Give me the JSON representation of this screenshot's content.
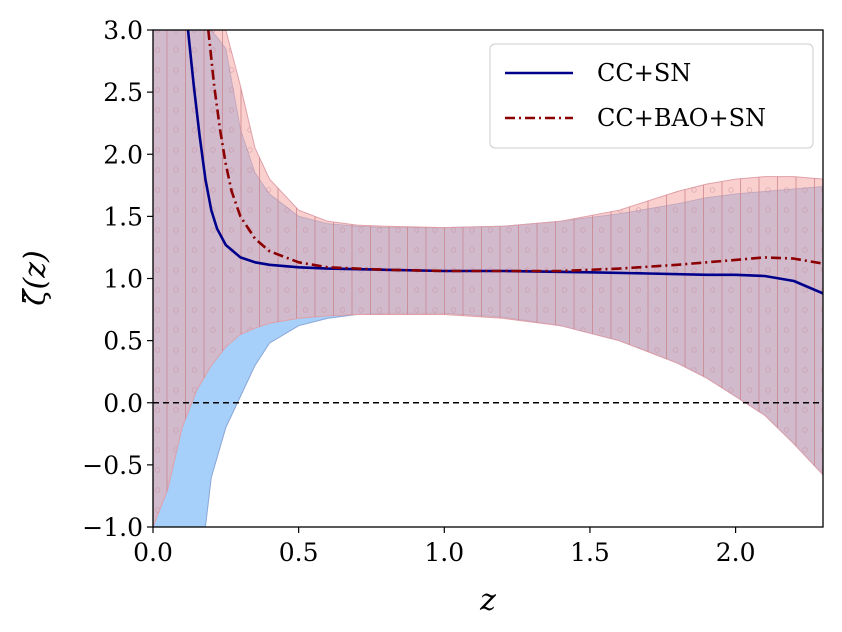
{
  "chart_data": {
    "type": "line",
    "xlabel": "z",
    "ylabel": "ζ̃(z)",
    "xlim": [
      0.0,
      2.3
    ],
    "ylim": [
      -1.0,
      3.0
    ],
    "x_ticks": [
      0.0,
      0.5,
      1.0,
      1.5,
      2.0
    ],
    "x_tick_labels": [
      "0.0",
      "0.5",
      "1.0",
      "1.5",
      "2.0"
    ],
    "y_ticks": [
      -1.0,
      -0.5,
      0.0,
      0.5,
      1.0,
      1.5,
      2.0,
      2.5,
      3.0
    ],
    "y_tick_labels": [
      "−1.0",
      "−0.5",
      "0.0",
      "0.5",
      "1.0",
      "1.5",
      "2.0",
      "2.5",
      "3.0"
    ],
    "reference_line": {
      "y": 0.0,
      "style": "dashed",
      "color": "#000000"
    },
    "legend_position": "top-right",
    "series": [
      {
        "name": "CC+SN",
        "color": "#00008b",
        "style": "solid",
        "band_color": "#a6cffa",
        "x": [
          0.12,
          0.14,
          0.16,
          0.18,
          0.2,
          0.22,
          0.25,
          0.3,
          0.35,
          0.4,
          0.5,
          0.6,
          0.8,
          1.0,
          1.2,
          1.5,
          1.7,
          1.9,
          2.0,
          2.1,
          2.2,
          2.3
        ],
        "y": [
          3.0,
          2.55,
          2.15,
          1.8,
          1.55,
          1.4,
          1.27,
          1.17,
          1.13,
          1.11,
          1.09,
          1.08,
          1.07,
          1.06,
          1.06,
          1.05,
          1.04,
          1.03,
          1.03,
          1.02,
          0.98,
          0.88
        ],
        "band_x": [
          0.0,
          0.05,
          0.1,
          0.12,
          0.15,
          0.18,
          0.2,
          0.25,
          0.3,
          0.35,
          0.4,
          0.5,
          0.6,
          0.7,
          0.8,
          1.0,
          1.2,
          1.4,
          1.6,
          1.8,
          1.9,
          2.0,
          2.1,
          2.2,
          2.3
        ],
        "band_upper": [
          3.0,
          3.0,
          3.0,
          3.0,
          3.0,
          3.0,
          3.0,
          2.85,
          2.2,
          1.85,
          1.68,
          1.5,
          1.44,
          1.42,
          1.41,
          1.41,
          1.42,
          1.46,
          1.52,
          1.6,
          1.65,
          1.68,
          1.7,
          1.72,
          1.74
        ],
        "band_lower": [
          -1.0,
          -1.0,
          -1.0,
          -1.0,
          -1.0,
          -1.0,
          -0.6,
          -0.2,
          0.05,
          0.3,
          0.48,
          0.62,
          0.68,
          0.71,
          0.72,
          0.72,
          0.69,
          0.62,
          0.5,
          0.32,
          0.2,
          0.05,
          -0.1,
          -0.33,
          -0.58
        ]
      },
      {
        "name": "CC+BAO+SN",
        "color": "#8b0000",
        "style": "dash-dot",
        "band_color": "#f6aaa7",
        "x": [
          0.19,
          0.21,
          0.23,
          0.25,
          0.27,
          0.3,
          0.35,
          0.4,
          0.5,
          0.6,
          0.8,
          1.0,
          1.2,
          1.4,
          1.6,
          1.8,
          2.0,
          2.1,
          2.2,
          2.3
        ],
        "y": [
          3.0,
          2.55,
          2.2,
          1.92,
          1.7,
          1.5,
          1.32,
          1.22,
          1.13,
          1.09,
          1.07,
          1.06,
          1.06,
          1.06,
          1.08,
          1.11,
          1.15,
          1.17,
          1.16,
          1.12
        ],
        "band_x": [
          0.0,
          0.05,
          0.1,
          0.15,
          0.2,
          0.25,
          0.3,
          0.35,
          0.4,
          0.5,
          0.6,
          0.7,
          0.8,
          1.0,
          1.2,
          1.4,
          1.6,
          1.8,
          1.9,
          2.0,
          2.1,
          2.2,
          2.3
        ],
        "band_upper": [
          3.0,
          3.0,
          3.0,
          3.0,
          3.0,
          3.0,
          2.55,
          2.05,
          1.8,
          1.55,
          1.46,
          1.43,
          1.42,
          1.41,
          1.42,
          1.46,
          1.55,
          1.7,
          1.76,
          1.8,
          1.82,
          1.82,
          1.8
        ],
        "band_lower": [
          -1.0,
          -0.7,
          -0.2,
          0.1,
          0.3,
          0.45,
          0.55,
          0.6,
          0.64,
          0.68,
          0.7,
          0.71,
          0.71,
          0.71,
          0.68,
          0.62,
          0.5,
          0.32,
          0.2,
          0.05,
          -0.1,
          -0.33,
          -0.58
        ]
      }
    ]
  }
}
